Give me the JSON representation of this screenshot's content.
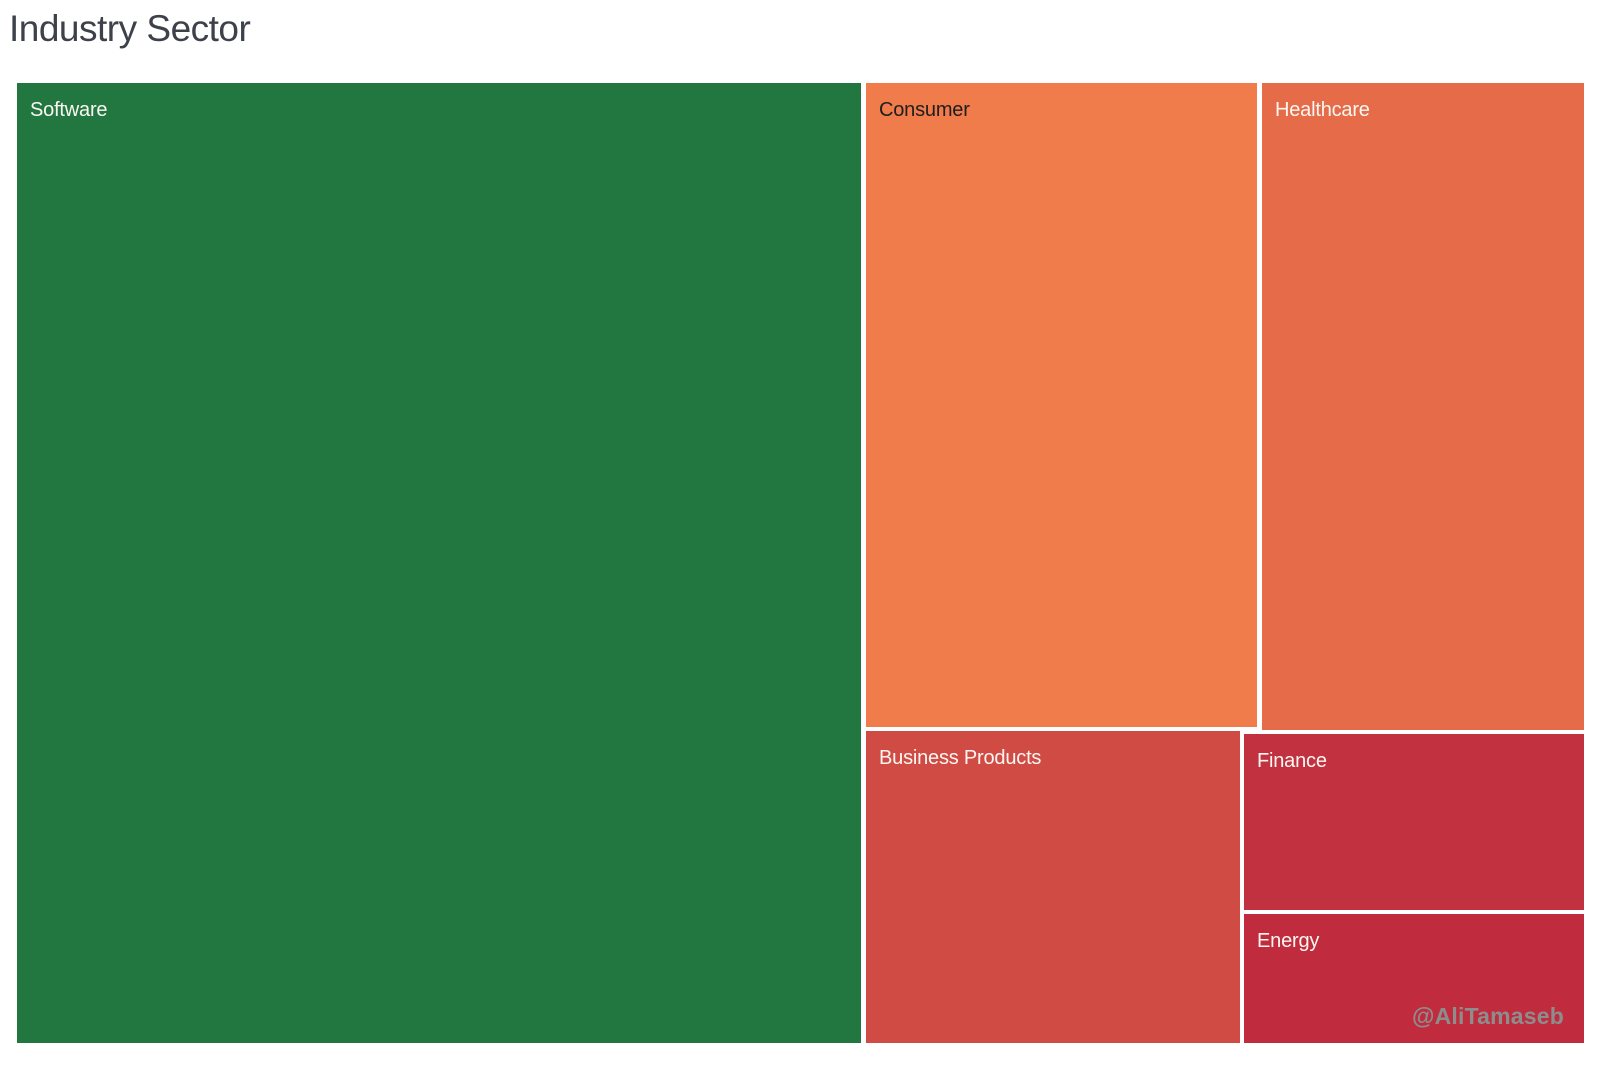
{
  "header": {
    "title": "Industry Sector",
    "title_color": "#3d414a"
  },
  "watermark": {
    "text": "@AliTamaseb",
    "color": "#8d8d8d"
  },
  "chart_data": {
    "type": "treemap",
    "title": "Industry Sector",
    "legend": "none",
    "values_shown": false,
    "color_note": "diverging red-to-green fill; largest sector green, smaller sectors shade toward crimson",
    "background_color": "#ffffff",
    "gap_color": "#ffffff",
    "nodes": [
      {
        "label": "Software",
        "estimated_area_pct": 54,
        "color": "#227740",
        "label_color": "#faf7f2",
        "position": "left column, full height"
      },
      {
        "label": "Consumer",
        "estimated_area_pct": 17,
        "color": "#f07b4b",
        "label_color": "#1e1e1e",
        "position": "top middle"
      },
      {
        "label": "Healthcare",
        "estimated_area_pct": 14,
        "color": "#e66b49",
        "label_color": "#faf7f2",
        "position": "top right"
      },
      {
        "label": "Business Products",
        "estimated_area_pct": 8,
        "color": "#d14b45",
        "label_color": "#faf7f2",
        "position": "bottom middle"
      },
      {
        "label": "Finance",
        "estimated_area_pct": 4,
        "color": "#c23140",
        "label_color": "#faf7f2",
        "position": "bottom right upper"
      },
      {
        "label": "Energy",
        "estimated_area_pct": 3,
        "color": "#c02c3e",
        "label_color": "#faf7f2",
        "position": "bottom right lower"
      }
    ]
  }
}
